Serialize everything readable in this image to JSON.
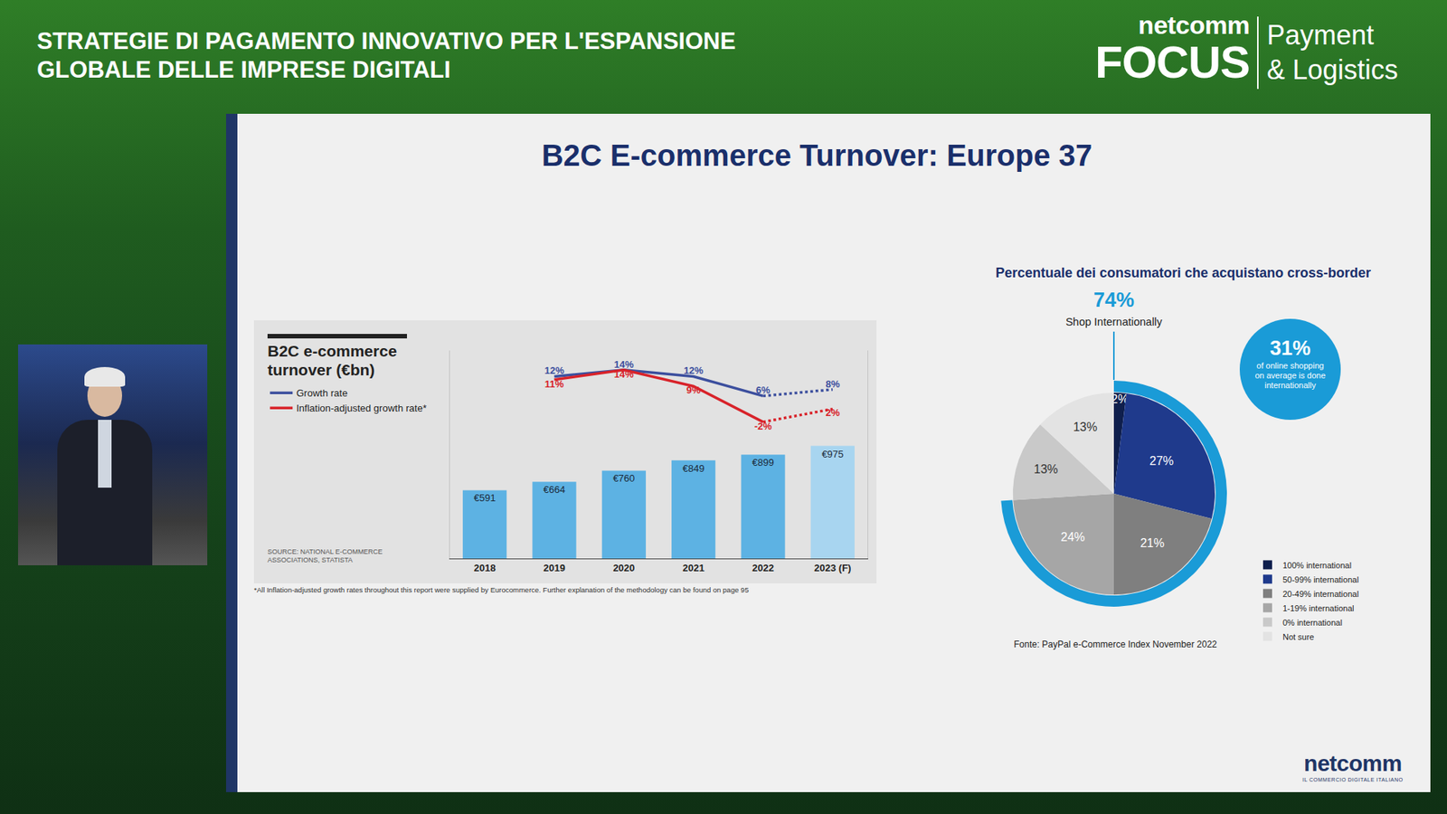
{
  "page": {
    "banner": {
      "title_lines": [
        "STRATEGIE DI PAGAMENTO INNOVATIVO PER L'ESPANSIONE",
        "GLOBALE DELLE IMPRESE DIGITALI"
      ],
      "logo": {
        "brand": "netcomm",
        "name": "FOCUS",
        "topic_lines": [
          "Payment",
          "& Logistics"
        ]
      }
    },
    "slide": {
      "title": "B2C E-commerce Turnover: Europe 37",
      "logo": {
        "brand": "netcomm",
        "tagline": "IL COMMERCIO DIGITALE ITALIANO"
      }
    }
  },
  "chart_data": [
    {
      "type": "bar",
      "title": "B2C e-commerce turnover (€bn)",
      "categories": [
        "2018",
        "2019",
        "2020",
        "2021",
        "2022",
        "2023 (F)"
      ],
      "series": [
        {
          "type": "bar",
          "colors": [
            "#5db2e3",
            "#5db2e3",
            "#5db2e3",
            "#5db2e3",
            "#5db2e3",
            "#a8d5f0"
          ],
          "values": [
            591,
            664,
            760,
            849,
            899,
            975
          ],
          "value_labels": [
            "€591",
            "€664",
            "€760",
            "€849",
            "€899",
            "€975"
          ]
        },
        {
          "type": "line",
          "name": "Growth rate",
          "color": "#3c4f9e",
          "axis": "y2",
          "values": [
            null,
            12,
            14,
            12,
            6,
            8
          ],
          "value_labels": [
            null,
            "12%",
            "14%",
            "12%",
            "6%",
            "8%"
          ]
        },
        {
          "type": "line",
          "name": "Inflation-adjusted growth rate*",
          "color": "#d8232a",
          "axis": "y2",
          "values": [
            null,
            11,
            14,
            9,
            -2,
            2
          ],
          "value_labels": [
            null,
            "11%",
            "14%",
            "9%",
            "-2%",
            "2%"
          ]
        }
      ],
      "ylim": [
        0,
        1800
      ],
      "yticks": [],
      "y2lim": [
        -44,
        20
      ],
      "y2ticks": [],
      "tick_labels": "x",
      "grid": false,
      "data_labels": true,
      "legend": "top left",
      "source": "SOURCE: NATIONAL E-COMMERCE ASSOCIATIONS, STATISTA",
      "footnote": "*All Inflation-adjusted growth rates throughout this report were supplied by Eurocommerce. Further explanation of the methodology can be found on page 95"
    },
    {
      "type": "pie",
      "title": "Percentuale dei consumatori che acquistano cross-border",
      "categories": [
        "100% international",
        "50-99% international",
        "20-49% international",
        "1-19% international",
        "0% international",
        "Not sure"
      ],
      "values": [
        2,
        27,
        21,
        24,
        13,
        13
      ],
      "value_labels": [
        "2%",
        "27%",
        "21%",
        "24%",
        "13%",
        "13%"
      ],
      "colors": [
        "#0f1f4d",
        "#1f3a8c",
        "#7f7f7f",
        "#a6a6a6",
        "#c9c9c9",
        "#e3e3e3"
      ],
      "data_labels": true,
      "legend": "right",
      "shop_internationally": {
        "value": 74,
        "label": "74%",
        "text": "Shop Internationally",
        "color": "#1a9bd7"
      },
      "bubble": {
        "title": "31%",
        "text": "of online shopping on average is done internationally",
        "color": "#1a9bd7"
      },
      "source": "Fonte: PayPal e-Commerce Index November 2022"
    }
  ]
}
